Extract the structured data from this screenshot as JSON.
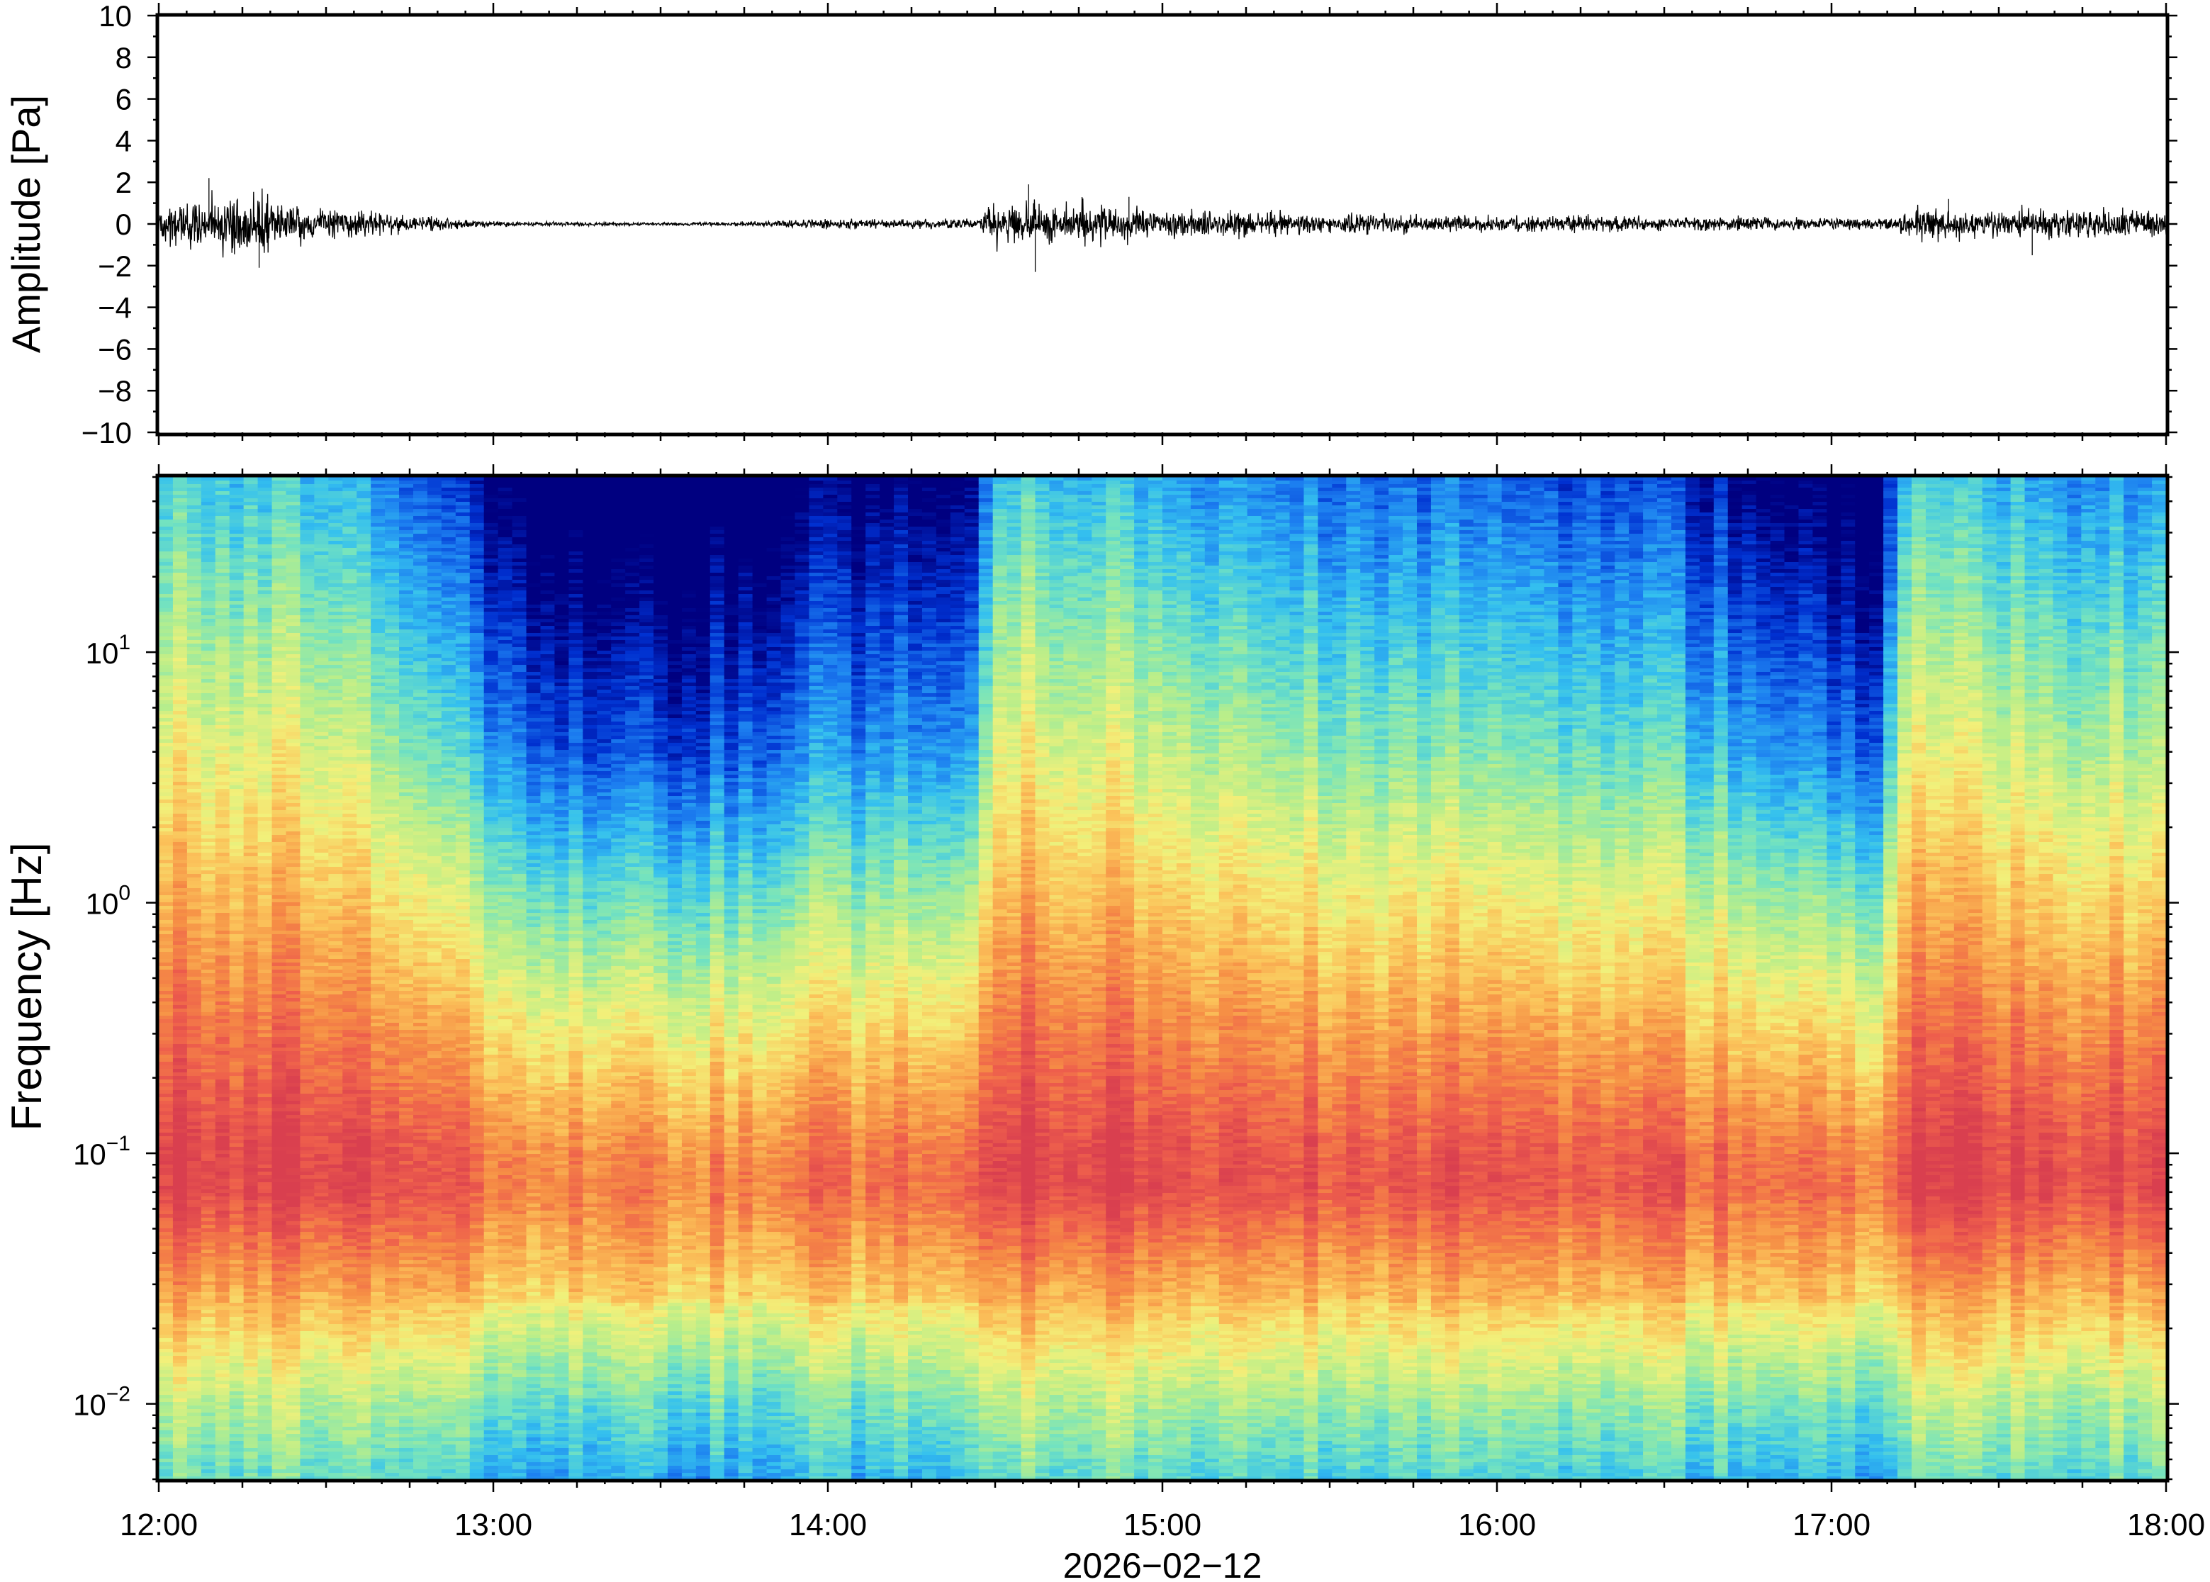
{
  "chart_data": [
    {
      "type": "line",
      "ylabel": "Amplitude [Pa]",
      "ylim": [
        -10,
        10
      ],
      "yticks": [
        10,
        8,
        6,
        4,
        2,
        0,
        -2,
        -4,
        -6,
        -8,
        -10
      ],
      "ytick_labels": [
        "10",
        "8",
        "6",
        "4",
        "2",
        "0",
        "−2",
        "−4",
        "−6",
        "−8",
        "−10"
      ],
      "xlim": [
        "2026-02-12 12:00",
        "2026-02-12 18:00"
      ],
      "grid": false,
      "series": [
        {
          "color": "#000000",
          "envelope_hours": [
            12.0,
            12.25,
            12.5,
            12.75,
            13.0,
            13.5,
            13.75,
            14.0,
            14.25,
            14.45,
            14.5,
            14.75,
            15.0,
            15.5,
            16.0,
            16.5,
            17.0,
            17.2,
            17.25,
            17.5,
            17.75,
            18.0
          ],
          "envelope_amplitude": [
            1.0,
            1.7,
            0.9,
            0.5,
            0.15,
            0.08,
            0.12,
            0.3,
            0.25,
            0.3,
            1.3,
            1.1,
            0.8,
            0.55,
            0.5,
            0.45,
            0.35,
            0.35,
            1.0,
            0.7,
            0.8,
            0.7
          ],
          "peaks": [
            [
              12.15,
              2.2
            ],
            [
              12.3,
              -2.1
            ],
            [
              14.6,
              1.9
            ],
            [
              14.62,
              -2.3
            ],
            [
              14.9,
              1.3
            ],
            [
              17.35,
              1.2
            ],
            [
              17.6,
              -1.5
            ]
          ]
        }
      ]
    },
    {
      "type": "heatmap",
      "ylabel": "Frequency [Hz]",
      "xlabel": "2026−02−12",
      "y_scale": "log",
      "ylim": [
        0.005,
        50
      ],
      "ytick_values": [
        10,
        1,
        0.1,
        0.01
      ],
      "ytick_labels": [
        {
          "base": "10",
          "exp": "1"
        },
        {
          "base": "10",
          "exp": "0"
        },
        {
          "base": "10",
          "exp": "−1"
        },
        {
          "base": "10",
          "exp": "−2"
        }
      ],
      "x_ticks": [
        "12:00",
        "13:00",
        "14:00",
        "15:00",
        "16:00",
        "17:00",
        "18:00"
      ],
      "colormap": "jet",
      "colorscale_stops": [
        "#000080",
        "#0030d0",
        "#1c7ef0",
        "#34c0ef",
        "#74e3bf",
        "#b9ee8a",
        "#f2f07a",
        "#fbc35a",
        "#f68f45",
        "#ee5e4c",
        "#d93f4f"
      ],
      "grid": false,
      "x_hours": [
        12.0,
        12.5,
        12.75,
        13.0,
        13.25,
        13.5,
        13.75,
        14.0,
        14.45,
        14.5,
        15.0,
        15.5,
        16.0,
        16.5,
        16.75,
        17.0,
        17.15,
        17.2,
        17.5,
        18.0
      ],
      "activity_level": [
        1.0,
        0.95,
        0.72,
        0.5,
        0.3,
        0.28,
        0.35,
        0.45,
        0.45,
        1.0,
        0.9,
        0.78,
        0.72,
        0.65,
        0.5,
        0.35,
        0.4,
        1.0,
        0.9,
        0.8
      ]
    }
  ]
}
